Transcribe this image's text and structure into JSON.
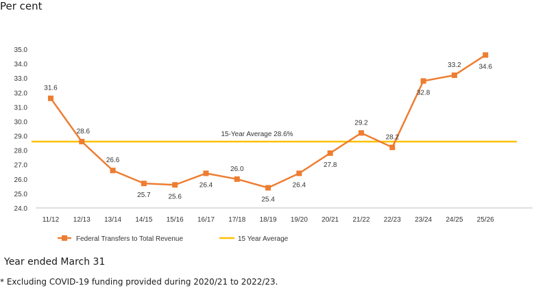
{
  "page": {
    "unit_label": "Per cent",
    "x_caption": "Year ended March 31",
    "footnote": "* Excluding COVID-19 funding provided during 2020/21 to 2022/23."
  },
  "chart_data": {
    "type": "line",
    "categories": [
      "11/12",
      "12/13",
      "13/14",
      "14/15",
      "15/16",
      "16/17",
      "17/18",
      "18/19",
      "19/20",
      "20/21",
      "21/22",
      "22/23",
      "23/24",
      "24/25",
      "25/26"
    ],
    "series": [
      {
        "name": "Federal Transfers to Total Revenue",
        "color": "#ED7D31",
        "marker": "square",
        "values": [
          31.6,
          28.6,
          26.6,
          25.7,
          25.6,
          26.4,
          26.0,
          25.4,
          26.4,
          27.8,
          29.2,
          28.2,
          32.8,
          33.2,
          34.6
        ],
        "labels": [
          "31.6",
          "28.6",
          "26.6",
          "25.7",
          "25.6",
          "26.4",
          "26.0",
          "25.4",
          "26.4",
          "27.8",
          "29.2",
          "28.2",
          "32.8",
          "33.2",
          "34.6"
        ]
      },
      {
        "name": "15 Year Average",
        "color": "#FFC000",
        "value": 28.6,
        "annotation": "15-Year Average 28.6%"
      }
    ],
    "ylim": [
      24.0,
      35.0
    ],
    "yticks": [
      "24.0",
      "25.0",
      "26.0",
      "27.0",
      "28.0",
      "29.0",
      "30.0",
      "31.0",
      "32.0",
      "33.0",
      "34.0",
      "35.0"
    ],
    "ylabel": "Per cent",
    "xlabel": "Year ended March 31",
    "grid": false,
    "legend": "bottom"
  }
}
